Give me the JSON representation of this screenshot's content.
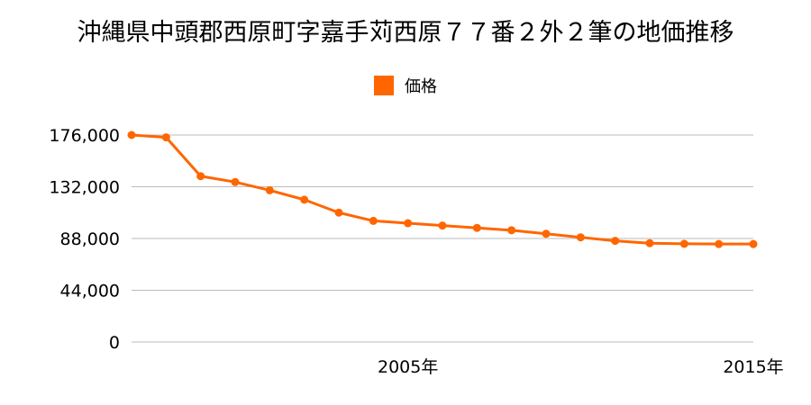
{
  "chart_data": {
    "type": "line",
    "title": "沖縄県中頭郡西原町字嘉手苅西原７７番２外２筆の地価推移",
    "xlabel": "",
    "ylabel": "",
    "x": [
      1997,
      1998,
      1999,
      2000,
      2001,
      2002,
      2003,
      2004,
      2005,
      2006,
      2007,
      2008,
      2009,
      2010,
      2011,
      2012,
      2013,
      2014,
      2015
    ],
    "x_tick_labels": [
      {
        "value": 2005,
        "label": "2005年"
      },
      {
        "value": 2015,
        "label": "2015年"
      }
    ],
    "y_ticks": [
      "176,000",
      "132,000",
      "88,000",
      "44,000",
      "0"
    ],
    "y_tick_values": [
      176000,
      132000,
      88000,
      44000,
      0
    ],
    "ylim": [
      0,
      176000
    ],
    "grid": true,
    "legend_position": "top-center",
    "series": [
      {
        "name": "価格",
        "color": "#ff6600",
        "values": [
          176000,
          174000,
          141000,
          136000,
          129000,
          121000,
          110000,
          103000,
          101000,
          99000,
          97000,
          95000,
          92000,
          89000,
          86000,
          84000,
          83500,
          83300,
          83300
        ]
      }
    ]
  }
}
